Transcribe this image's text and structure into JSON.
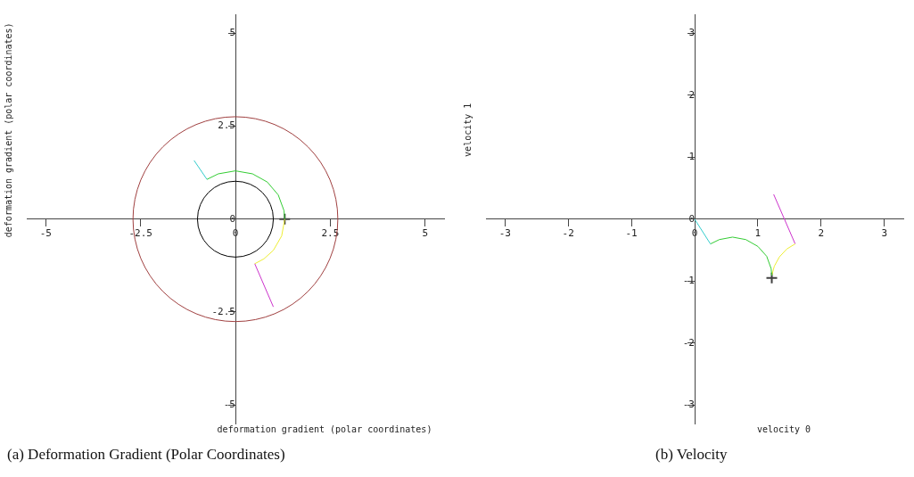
{
  "chart_data": [
    {
      "type": "line",
      "title": "(a) Deformation Gradient (Polar Coordinates)",
      "xlabel": "deformation gradient (polar coordinates)",
      "ylabel": "deformation gradient (polar coordinates)",
      "xlim": [
        -5.5,
        5.5
      ],
      "ylim": [
        -5.5,
        5.5
      ],
      "xticks": [
        -5,
        -2.5,
        0,
        2.5,
        5
      ],
      "yticks": [
        -5,
        -2.5,
        0,
        2.5,
        5
      ],
      "grid": false,
      "legend": false,
      "marker": "none",
      "series": [
        {
          "color": "#33cccc",
          "x": [
            -1.09,
            -0.75
          ],
          "values": [
            1.58,
            1.07
          ]
        },
        {
          "color": "#33cc33",
          "x": [
            -0.75,
            -0.45,
            0,
            0.45,
            0.84,
            1.13,
            1.28,
            1.3
          ],
          "values": [
            1.07,
            1.22,
            1.3,
            1.22,
            1.0,
            0.65,
            0.23,
            0
          ]
        },
        {
          "color": "#eeee33",
          "x": [
            1.3,
            1.22,
            1.0,
            0.75,
            0.51
          ],
          "values": [
            0,
            -0.45,
            -0.84,
            -1.07,
            -1.2
          ]
        },
        {
          "color": "#cc33cc",
          "x": [
            0.51,
            1.0
          ],
          "values": [
            -1.2,
            -2.36
          ]
        },
        {
          "type": "scatter",
          "marker": "cross",
          "color": "#404040",
          "x": [
            1.3
          ],
          "values": [
            0
          ]
        }
      ]
    },
    {
      "type": "line",
      "title": "(b) Velocity",
      "xlabel": "velocity 0",
      "ylabel": "velocity 1",
      "xlim": [
        -3.3,
        3.3
      ],
      "ylim": [
        -3.3,
        3.3
      ],
      "xticks": [
        -3,
        -2,
        -1,
        0,
        1,
        2,
        3
      ],
      "yticks": [
        -3,
        -2,
        -1,
        0,
        1,
        2,
        3
      ],
      "grid": false,
      "legend": false,
      "marker": "none",
      "series": [
        {
          "color": "#33cccc",
          "x": [
            0,
            0.25
          ],
          "values": [
            0,
            -0.4
          ]
        },
        {
          "color": "#33cc33",
          "x": [
            0.25,
            0.39,
            0.6,
            0.81,
            1.0,
            1.14,
            1.21,
            1.22
          ],
          "values": [
            -0.4,
            -0.33,
            -0.29,
            -0.33,
            -0.44,
            -0.6,
            -0.8,
            -0.91
          ]
        },
        {
          "color": "#eeee33",
          "x": [
            1.22,
            1.26,
            1.34,
            1.46,
            1.59
          ],
          "values": [
            -0.91,
            -0.76,
            -0.61,
            -0.48,
            -0.4
          ]
        },
        {
          "color": "#cc33cc",
          "x": [
            1.59,
            1.25
          ],
          "values": [
            -0.4,
            0.4
          ]
        },
        {
          "type": "scatter",
          "marker": "cross",
          "color": "#404040",
          "x": [
            1.22
          ],
          "values": [
            -0.95
          ]
        }
      ]
    }
  ]
}
